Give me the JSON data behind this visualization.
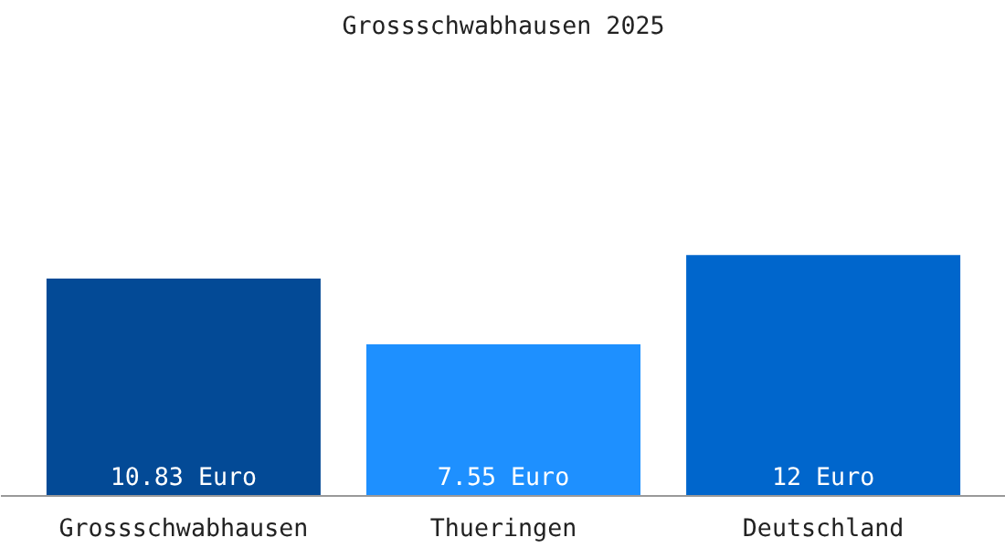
{
  "chart_data": {
    "type": "bar",
    "title": "Grossschwabhausen 2025",
    "categories": [
      "Grossschwabhausen",
      "Thueringen",
      "Deutschland"
    ],
    "values": [
      10.83,
      7.55,
      12
    ],
    "colors": [
      "#034a96",
      "#1e90ff",
      "#0066cc"
    ],
    "value_labels": [
      "10.83 Euro",
      "7.55 Euro",
      "12 Euro"
    ],
    "grid": false
  }
}
